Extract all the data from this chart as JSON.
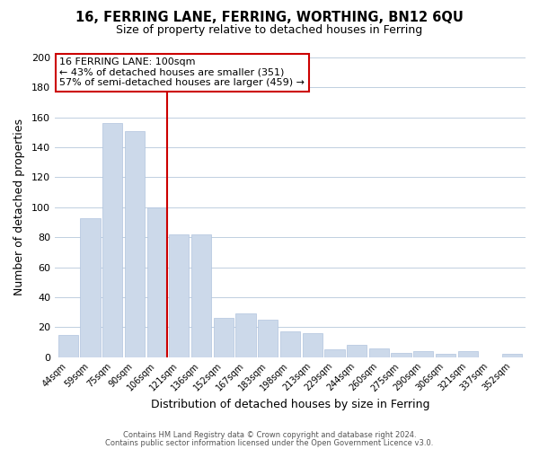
{
  "title": "16, FERRING LANE, FERRING, WORTHING, BN12 6QU",
  "subtitle": "Size of property relative to detached houses in Ferring",
  "xlabel": "Distribution of detached houses by size in Ferring",
  "ylabel": "Number of detached properties",
  "bar_color": "#ccd9ea",
  "bar_edge_color": "#b0c4de",
  "categories": [
    "44sqm",
    "59sqm",
    "75sqm",
    "90sqm",
    "106sqm",
    "121sqm",
    "136sqm",
    "152sqm",
    "167sqm",
    "183sqm",
    "198sqm",
    "213sqm",
    "229sqm",
    "244sqm",
    "260sqm",
    "275sqm",
    "290sqm",
    "306sqm",
    "321sqm",
    "337sqm",
    "352sqm"
  ],
  "values": [
    15,
    93,
    156,
    151,
    100,
    82,
    82,
    26,
    29,
    25,
    17,
    16,
    5,
    8,
    6,
    3,
    4,
    2,
    4,
    0,
    2
  ],
  "highlight_bar_index": 4,
  "highlight_line_color": "#cc0000",
  "ylim": [
    0,
    200
  ],
  "yticks": [
    0,
    20,
    40,
    60,
    80,
    100,
    120,
    140,
    160,
    180,
    200
  ],
  "annotation_title": "16 FERRING LANE: 100sqm",
  "annotation_line1": "← 43% of detached houses are smaller (351)",
  "annotation_line2": "57% of semi-detached houses are larger (459) →",
  "annotation_box_color": "#ffffff",
  "annotation_box_edge": "#cc0000",
  "footer1": "Contains HM Land Registry data © Crown copyright and database right 2024.",
  "footer2": "Contains public sector information licensed under the Open Government Licence v3.0.",
  "background_color": "#ffffff",
  "grid_color": "#c0cfe0"
}
